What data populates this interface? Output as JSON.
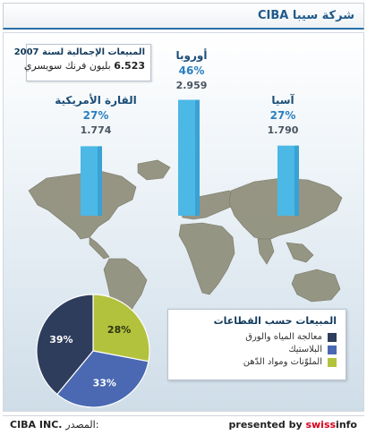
{
  "header": {
    "title": "شركة سيبا CIBA"
  },
  "sales_box": {
    "title": "المبيعات الإجمالية لسنة 2007",
    "amount": "6.523",
    "unit_text": "بليون فرنك سويسري"
  },
  "footer": {
    "source_label": "المصدر:",
    "source_value": "CIBA INC.",
    "presented_by": "presented by",
    "brand_swiss": "swiss",
    "brand_info": "info"
  },
  "colors": {
    "bar": "#4bb8e6",
    "bar_dark": "#2b8fc4",
    "map_land": "#8f8e7a",
    "pie_dark": "#2e3d5c",
    "pie_blue": "#4a69b2",
    "pie_lime": "#b3c23c"
  },
  "chart_data": [
    {
      "type": "bar",
      "title": "",
      "categories": [
        "القارة الأمريكية",
        "أوروبا",
        "آسيا"
      ],
      "series": [
        {
          "name": "",
          "values": [
            1.774,
            2.959,
            1.79
          ]
        }
      ],
      "percent_labels": [
        "27%",
        "46%",
        "27%"
      ],
      "value_labels": [
        "1.774",
        "2.959",
        "1.790"
      ],
      "ylim": [
        0,
        3.2
      ]
    },
    {
      "type": "pie",
      "title": "المبيعات حسب القطاعات",
      "labels": [
        "معالجة المياه والورق",
        "البلاستيك",
        "الملوّنات ومواد الدّهن"
      ],
      "values": [
        39,
        33,
        28
      ],
      "value_labels": [
        "39%",
        "33%",
        "28%"
      ],
      "colors": [
        "#2e3d5c",
        "#4a69b2",
        "#b3c23c"
      ],
      "legend": "right"
    }
  ]
}
